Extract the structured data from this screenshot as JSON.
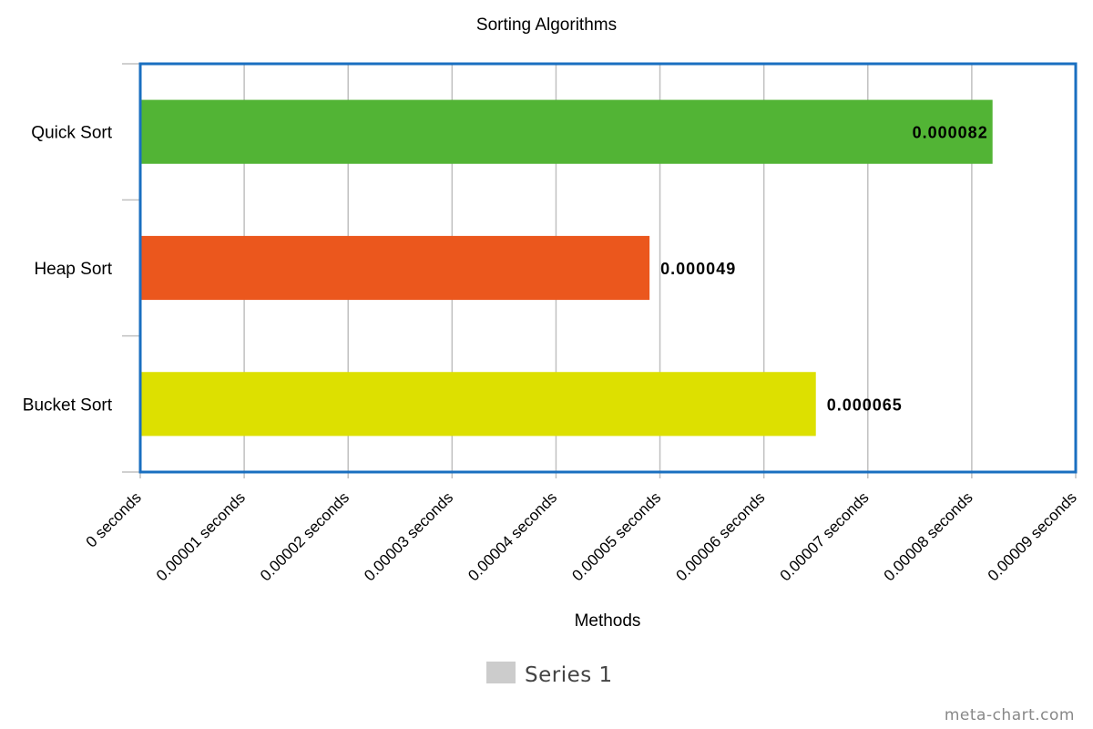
{
  "chart_data": {
    "type": "bar",
    "orientation": "horizontal",
    "title": "Sorting Algorithms",
    "xlabel": "Methods",
    "ylabel": "",
    "categories": [
      "Quick Sort",
      "Heap Sort",
      "Bucket Sort"
    ],
    "series": [
      {
        "name": "Series 1",
        "values": [
          8.2e-05,
          4.9e-05,
          6.5e-05
        ],
        "colors": [
          "#52b435",
          "#eb571d",
          "#dde000"
        ],
        "data_labels": [
          "0.000082",
          "0.000049",
          "0.000065"
        ]
      }
    ],
    "xlim": [
      0,
      9e-05
    ],
    "x_ticks": [
      {
        "value": 0,
        "label": "0 seconds"
      },
      {
        "value": 1e-05,
        "label": "0.00001 seconds"
      },
      {
        "value": 2e-05,
        "label": "0.00002 seconds"
      },
      {
        "value": 3e-05,
        "label": "0.00003 seconds"
      },
      {
        "value": 4e-05,
        "label": "0.00004 seconds"
      },
      {
        "value": 5e-05,
        "label": "0.00005 seconds"
      },
      {
        "value": 6e-05,
        "label": "0.00006 seconds"
      },
      {
        "value": 7e-05,
        "label": "0.00007 seconds"
      },
      {
        "value": 8e-05,
        "label": "0.00008 seconds"
      },
      {
        "value": 9e-05,
        "label": "0.00009 seconds"
      }
    ],
    "grid": true,
    "legend": {
      "position": "bottom",
      "label": "Series 1",
      "swatch_color": "#cccccc"
    },
    "frame_color": "#1a6fc0",
    "watermark": "meta-chart.com"
  }
}
